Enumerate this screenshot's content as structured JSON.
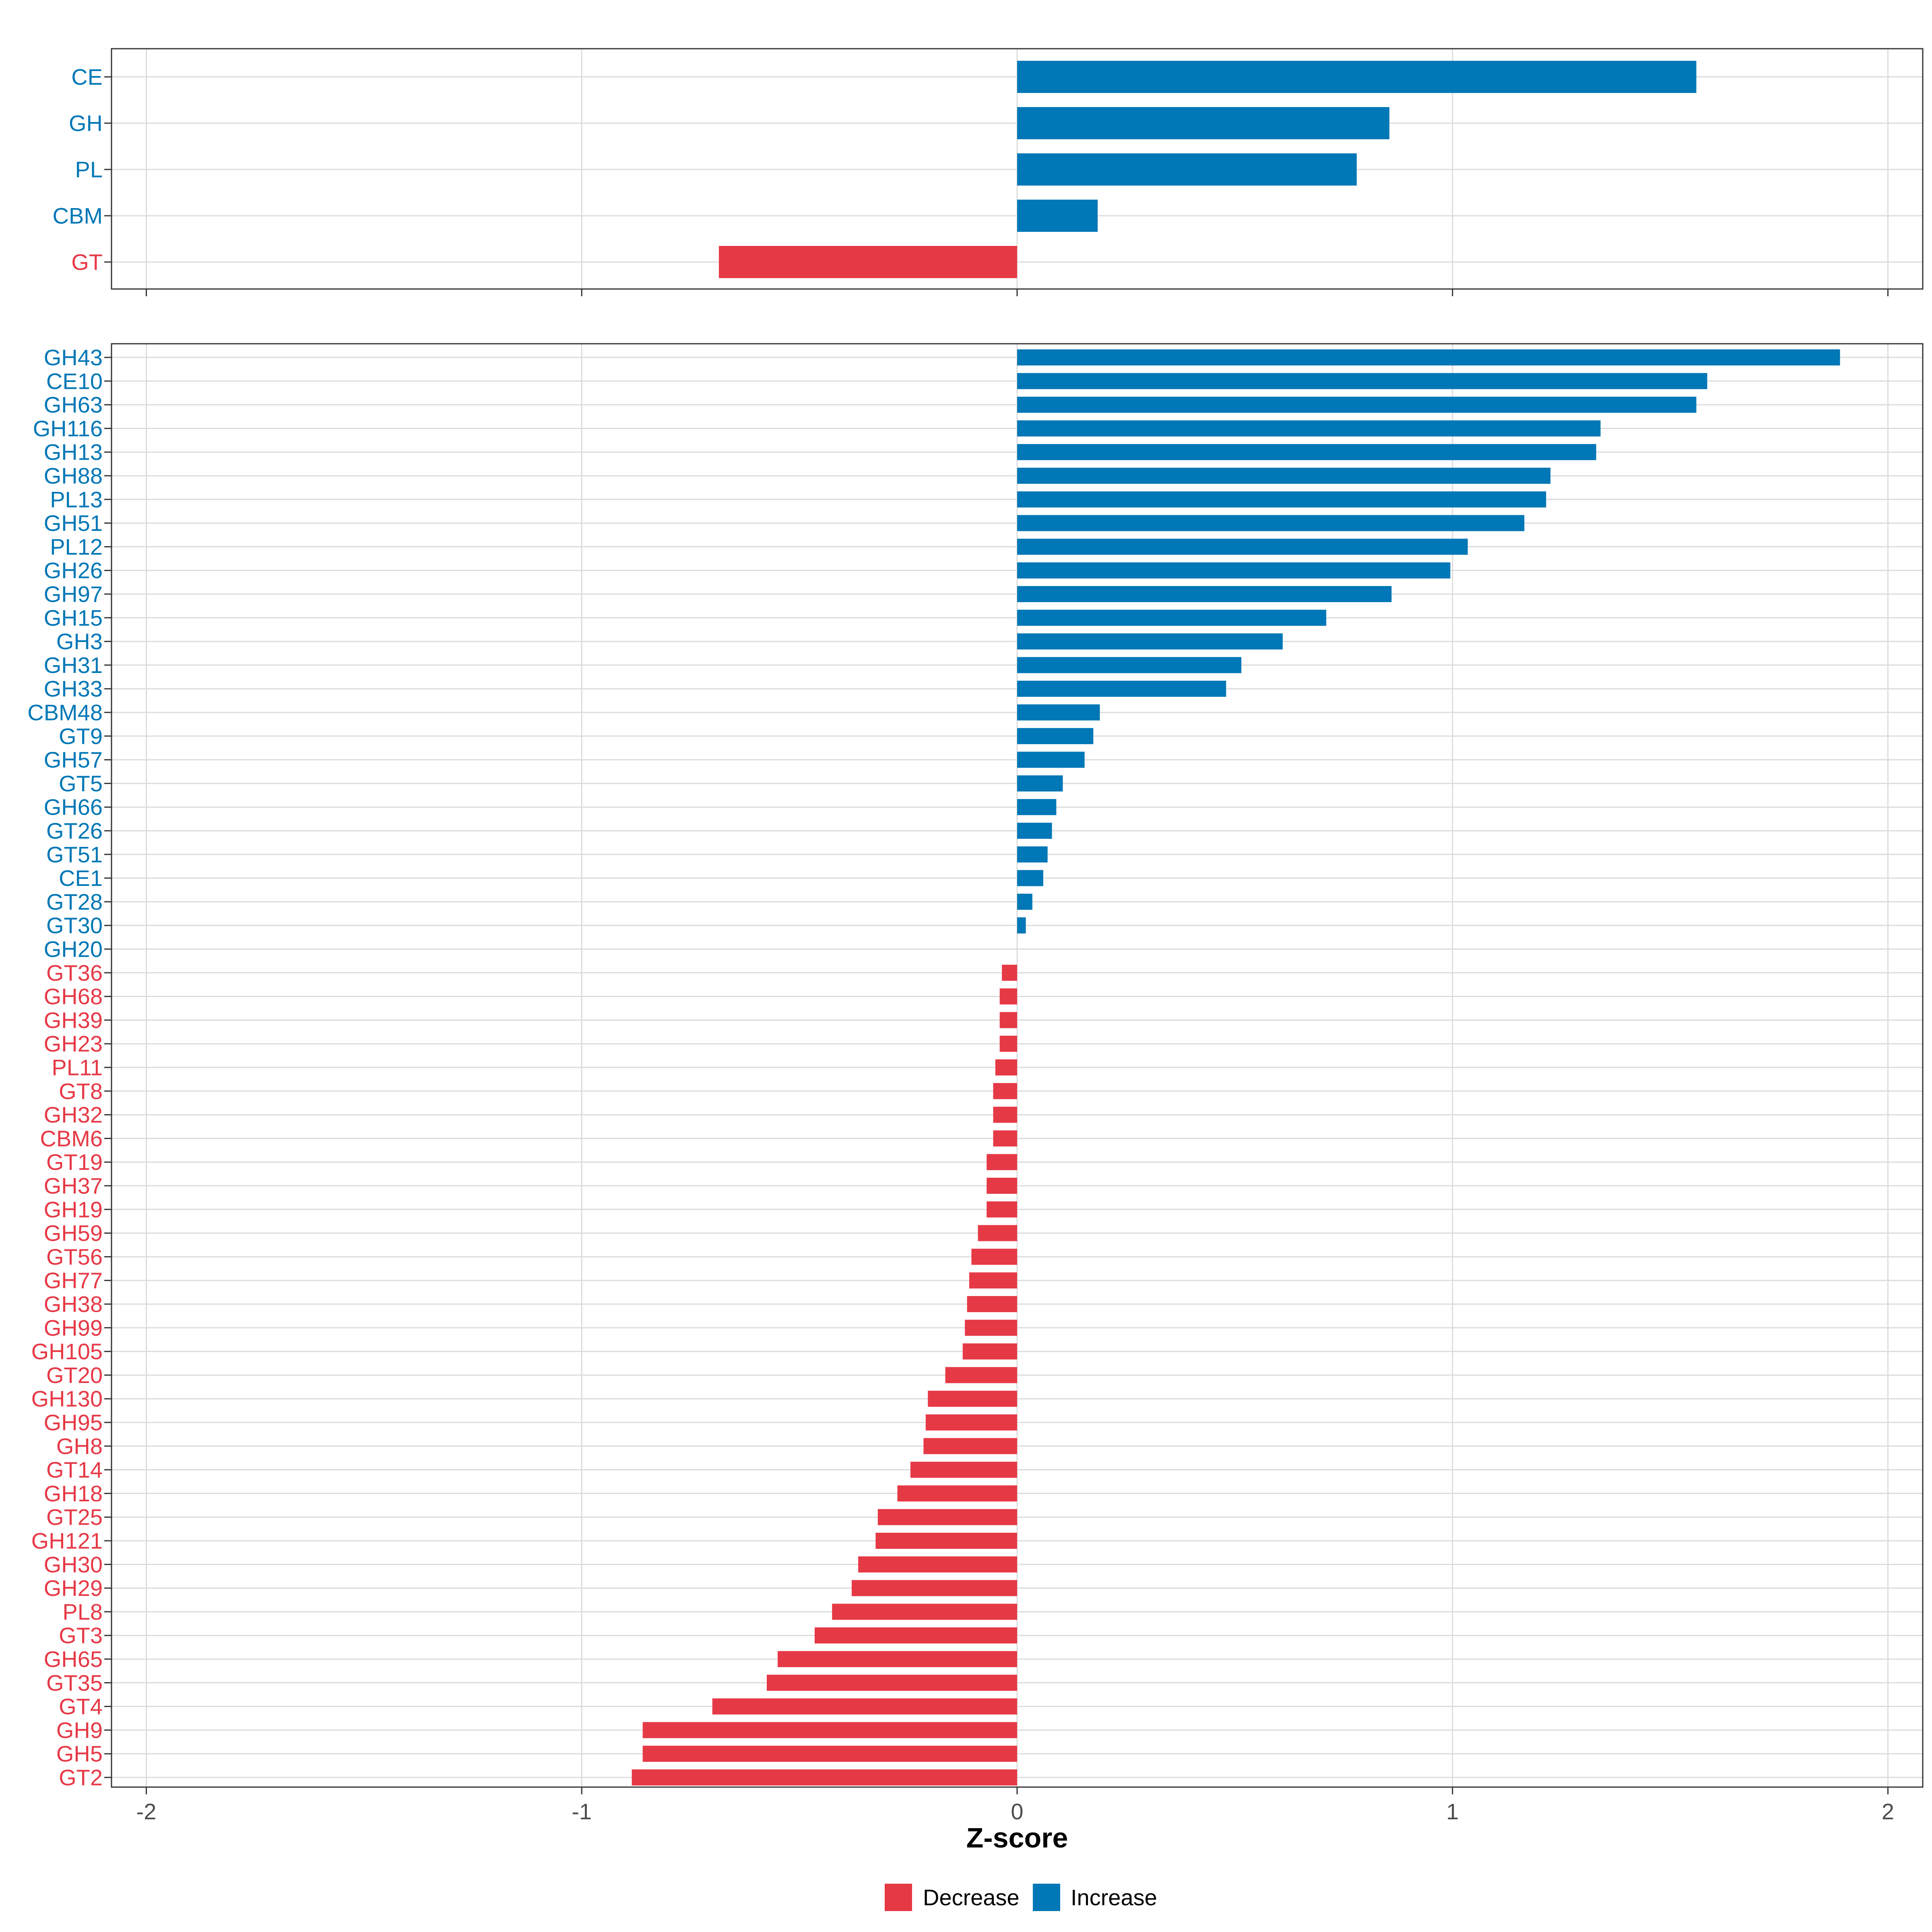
{
  "colors": {
    "increase": "#0077B6",
    "decrease": "#E63946"
  },
  "chart_data": [
    {
      "type": "bar",
      "orientation": "horizontal",
      "title": "",
      "xlabel": "Z-score",
      "ylabel": "",
      "xlim": [
        -2.08,
        2.08
      ],
      "xticks": [
        -2,
        -1,
        0,
        1,
        2
      ],
      "grid": true,
      "categories": [
        "CE",
        "GH",
        "PL",
        "CBM",
        "GT"
      ],
      "values": [
        1.56,
        0.855,
        0.78,
        0.185,
        -0.685
      ]
    },
    {
      "type": "bar",
      "orientation": "horizontal",
      "title": "",
      "xlabel": "Z-score",
      "ylabel": "",
      "xlim": [
        -2.08,
        2.08
      ],
      "xticks": [
        -2,
        -1,
        0,
        1,
        2
      ],
      "tick_labels": [
        "-2",
        "-1",
        "0",
        "1",
        "2"
      ],
      "grid": true,
      "categories": [
        "GH43",
        "CE10",
        "GH63",
        "GH116",
        "GH13",
        "GH88",
        "PL13",
        "GH51",
        "PL12",
        "GH26",
        "GH97",
        "GH15",
        "GH3",
        "GH31",
        "GH33",
        "CBM48",
        "GT9",
        "GH57",
        "GT5",
        "GH66",
        "GT26",
        "GT51",
        "CE1",
        "GT28",
        "GT30",
        "GH20",
        "GT36",
        "GH68",
        "GH39",
        "GH23",
        "PL11",
        "GT8",
        "GH32",
        "CBM6",
        "GT19",
        "GH37",
        "GH19",
        "GH59",
        "GT56",
        "GH77",
        "GH38",
        "GH99",
        "GH105",
        "GT20",
        "GH130",
        "GH95",
        "GH8",
        "GT14",
        "GH18",
        "GT25",
        "GH121",
        "GH30",
        "GH29",
        "PL8",
        "GT3",
        "GH65",
        "GT35",
        "GT4",
        "GH9",
        "GH5",
        "GT2"
      ],
      "values": [
        1.89,
        1.585,
        1.56,
        1.34,
        1.33,
        1.225,
        1.215,
        1.165,
        1.035,
        0.995,
        0.86,
        0.71,
        0.61,
        0.515,
        0.48,
        0.19,
        0.175,
        0.155,
        0.105,
        0.09,
        0.08,
        0.07,
        0.06,
        0.035,
        0.02,
        0.0,
        -0.035,
        -0.04,
        -0.04,
        -0.04,
        -0.05,
        -0.055,
        -0.055,
        -0.055,
        -0.07,
        -0.07,
        -0.07,
        -0.09,
        -0.105,
        -0.11,
        -0.115,
        -0.12,
        -0.125,
        -0.165,
        -0.205,
        -0.21,
        -0.215,
        -0.245,
        -0.275,
        -0.32,
        -0.325,
        -0.365,
        -0.38,
        -0.425,
        -0.465,
        -0.55,
        -0.575,
        -0.7,
        -0.86,
        -0.86,
        -0.885
      ]
    }
  ],
  "legend": {
    "position": "bottom",
    "items": [
      {
        "key": "decrease",
        "label": "Decrease"
      },
      {
        "key": "increase",
        "label": "Increase"
      }
    ]
  }
}
